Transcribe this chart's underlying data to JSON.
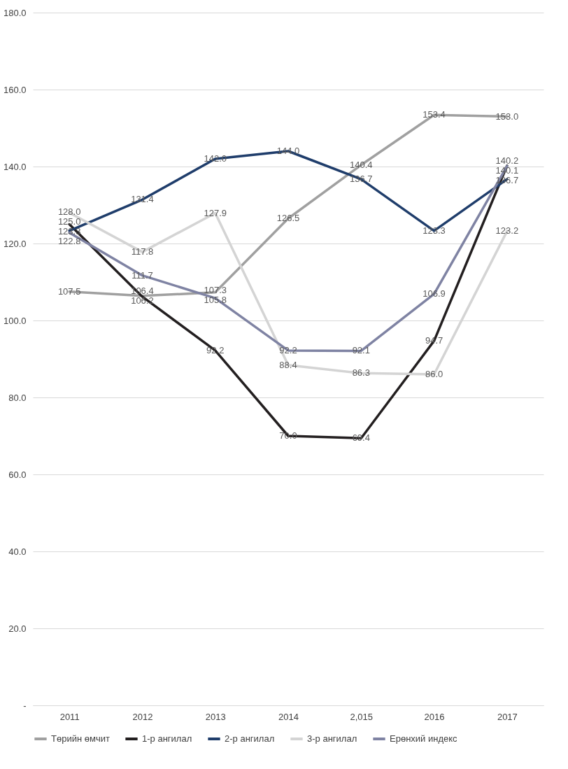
{
  "chart_data": {
    "type": "line",
    "categories": [
      "2011",
      "2012",
      "2013",
      "2014",
      "2,015",
      "2016",
      "2017"
    ],
    "series": [
      {
        "name": "Төрийн өмчит",
        "color": "#a0a0a0",
        "values": [
          107.5,
          106.4,
          107.3,
          126.5,
          140.4,
          153.4,
          153.0
        ],
        "value_labels": [
          "107.5",
          "106.4",
          "107.3",
          "126.5",
          "140.4",
          "153.4",
          "153.0"
        ]
      },
      {
        "name": "1-р ангилал",
        "color": "#231f20",
        "values": [
          125.0,
          106.2,
          92.2,
          70.0,
          69.4,
          94.7,
          140.2
        ],
        "value_labels": [
          "125.0",
          "106.2",
          "92.2",
          "70.0",
          "69.4",
          "94.7",
          "140.2"
        ]
      },
      {
        "name": "2-р ангилал",
        "color": "#1f3d6b",
        "values": [
          123.3,
          131.4,
          142.0,
          144.0,
          136.7,
          123.3,
          136.7
        ],
        "value_labels": [
          "123.3",
          "131.4",
          "142.0",
          "144.0",
          "136.7",
          "123.3",
          "136.7"
        ]
      },
      {
        "name": "3-р ангилал",
        "color": "#d4d4d4",
        "values": [
          128.0,
          117.8,
          127.9,
          88.4,
          86.3,
          86.0,
          123.2
        ],
        "value_labels": [
          "128.0",
          "117.8",
          "127.9",
          "88.4",
          "86.3",
          "86.0",
          "123.2"
        ]
      },
      {
        "name": "Ерөнхий индекс",
        "color": "#7f83a3",
        "values": [
          122.8,
          111.7,
          105.8,
          92.2,
          92.1,
          106.9,
          140.1
        ],
        "value_labels": [
          "122.8",
          "111.7",
          "105.8",
          "92.2",
          "92.1",
          "106.9",
          "140.1"
        ]
      }
    ],
    "ylim": [
      0,
      180
    ],
    "yticks": [
      {
        "value": 0,
        "label": "-"
      },
      {
        "value": 20,
        "label": "20.0"
      },
      {
        "value": 40,
        "label": "40.0"
      },
      {
        "value": 60,
        "label": "60.0"
      },
      {
        "value": 80,
        "label": "80.0"
      },
      {
        "value": 100,
        "label": "100.0"
      },
      {
        "value": 120,
        "label": "120.0"
      },
      {
        "value": 140,
        "label": "140.0"
      },
      {
        "value": 160,
        "label": "160.0"
      },
      {
        "value": 180,
        "label": "180.0"
      }
    ],
    "grid": "y",
    "legend": "bottom",
    "marker": "none",
    "line_style": "solid"
  }
}
